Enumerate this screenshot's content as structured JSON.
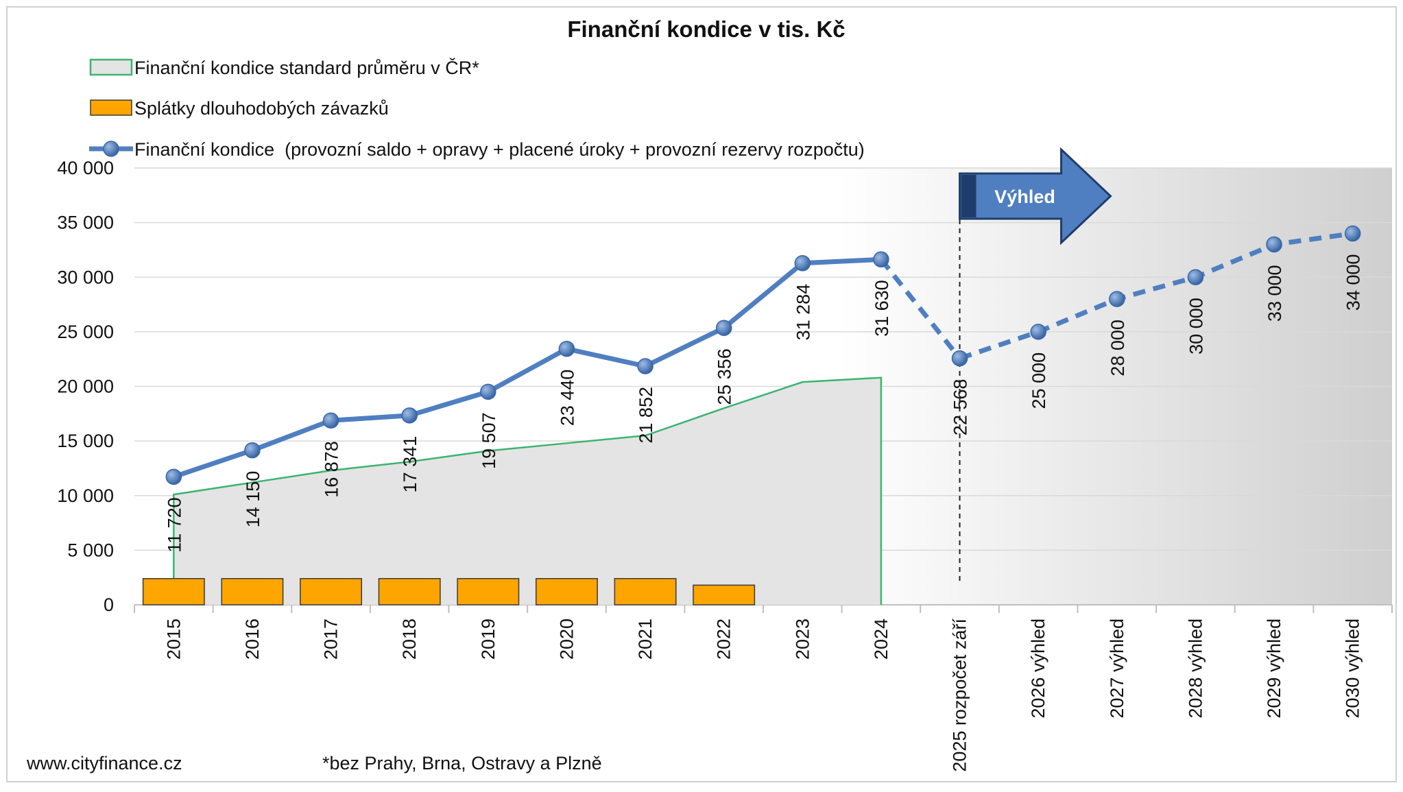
{
  "chart_data": {
    "type": "line",
    "title": "Finanční kondice v tis. Kč",
    "categories": [
      "2015",
      "2016",
      "2017",
      "2018",
      "2019",
      "2020",
      "2021",
      "2022",
      "2023",
      "2024",
      "2025 rozpočet září",
      "2026 výhled",
      "2027 výhled",
      "2028 výhled",
      "2029 výhled",
      "2030 výhled"
    ],
    "ylim": [
      0,
      40000
    ],
    "yticks": [
      0,
      {
        "value": 5000,
        "label": "5 000"
      },
      {
        "value": 10000,
        "label": "10 000"
      },
      {
        "value": 15000,
        "label": "15 000"
      },
      {
        "value": 20000,
        "label": "20 000"
      },
      {
        "value": 25000,
        "label": "25 000"
      },
      {
        "value": 30000,
        "label": "30 000"
      },
      {
        "value": 35000,
        "label": "35 000"
      },
      {
        "value": 40000,
        "label": "40 000"
      }
    ],
    "grid": true,
    "series": [
      {
        "name": "Finanční kondice standard průměru v ČR*",
        "type": "area",
        "color": "#e4e4e4",
        "line_color": "#3cb371",
        "values": [
          10100,
          11200,
          12300,
          13100,
          14100,
          14800,
          15500,
          18000,
          20400,
          20800,
          null,
          null,
          null,
          null,
          null,
          null
        ]
      },
      {
        "name": "Splátky dlouhodobých závazků",
        "type": "bar",
        "color": "#ffa500",
        "values": [
          2400,
          2400,
          2400,
          2400,
          2400,
          2400,
          2400,
          1800,
          null,
          null,
          null,
          null,
          null,
          null,
          null,
          null
        ]
      },
      {
        "name": "Finanční kondice  (provozní saldo + opravy + placené úroky + provozní rezervy rozpočtu)",
        "type": "line",
        "color": "#4f7fc0",
        "values": [
          11720,
          14150,
          16878,
          17341,
          19507,
          23440,
          21852,
          25356,
          31284,
          31630,
          22568,
          25000,
          28000,
          30000,
          33000,
          34000
        ],
        "value_labels": [
          "11 720",
          "14 150",
          "16 878",
          "17 341",
          "19 507",
          "23 440",
          "21 852",
          "25 356",
          "31 284",
          "31 630",
          "22 568",
          "25 000",
          "28 000",
          "30 000",
          "33 000",
          "34 000"
        ],
        "line_style": [
          "solid",
          "solid",
          "solid",
          "solid",
          "solid",
          "solid",
          "solid",
          "solid",
          "solid",
          "solid",
          "dashed",
          "dashed",
          "dashed",
          "dashed",
          "dashed",
          "dashed"
        ]
      }
    ],
    "annotations": [
      {
        "text": "Výhled"
      }
    ],
    "footer": [
      "www.cityfinance.cz",
      "*bez Prahy, Brna, Ostravy a Plzně"
    ]
  }
}
